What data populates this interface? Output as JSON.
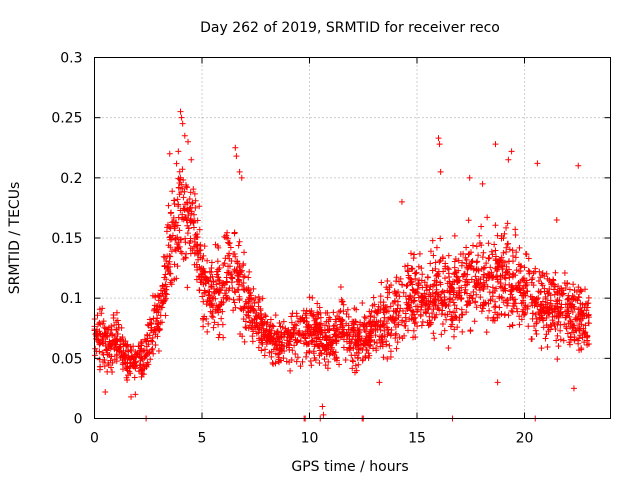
{
  "chart_data": {
    "type": "scatter",
    "title": "Day 262 of 2019, SRMTID for receiver reco",
    "xlabel": "GPS time / hours",
    "ylabel": "SRMTID / TECUs",
    "xlim": [
      0,
      24
    ],
    "ylim": [
      0,
      0.3
    ],
    "grid": true,
    "legend": "none",
    "marker": "+",
    "color": "#ff0000",
    "x_ticks": [
      0,
      5,
      10,
      15,
      20
    ],
    "x_tick_labels": [
      "0",
      "5",
      "10",
      "15",
      "20"
    ],
    "y_ticks": [
      0,
      0.05,
      0.1,
      0.15,
      0.2,
      0.25,
      0.3
    ],
    "y_tick_labels": [
      "0",
      "0.05",
      "0.1",
      "0.15",
      "0.2",
      "0.25",
      "0.3"
    ],
    "trend_profile": {
      "hours": [
        0,
        0.5,
        1,
        1.5,
        2,
        2.5,
        3,
        3.5,
        4,
        4.5,
        5,
        5.5,
        6,
        6.5,
        7,
        7.5,
        8,
        8.5,
        9,
        9.5,
        10,
        10.5,
        11,
        11.5,
        12,
        12.5,
        13,
        13.5,
        14,
        14.5,
        15,
        15.5,
        16,
        16.5,
        17,
        17.5,
        18,
        18.5,
        19,
        19.5,
        20,
        20.5,
        21,
        21.5,
        22,
        22.5,
        23
      ],
      "mean_srmtid": [
        0.075,
        0.06,
        0.065,
        0.05,
        0.045,
        0.06,
        0.09,
        0.14,
        0.17,
        0.16,
        0.12,
        0.1,
        0.11,
        0.13,
        0.1,
        0.085,
        0.07,
        0.06,
        0.065,
        0.07,
        0.075,
        0.07,
        0.065,
        0.075,
        0.07,
        0.065,
        0.075,
        0.085,
        0.09,
        0.1,
        0.1,
        0.095,
        0.11,
        0.1,
        0.11,
        0.115,
        0.12,
        0.11,
        0.12,
        0.115,
        0.11,
        0.1,
        0.09,
        0.095,
        0.09,
        0.085,
        0.08
      ],
      "spread": [
        0.025,
        0.02,
        0.02,
        0.018,
        0.015,
        0.02,
        0.025,
        0.035,
        0.045,
        0.04,
        0.035,
        0.03,
        0.035,
        0.04,
        0.03,
        0.025,
        0.02,
        0.018,
        0.02,
        0.022,
        0.025,
        0.025,
        0.022,
        0.025,
        0.025,
        0.022,
        0.025,
        0.028,
        0.03,
        0.032,
        0.032,
        0.03,
        0.035,
        0.032,
        0.035,
        0.035,
        0.038,
        0.035,
        0.038,
        0.035,
        0.032,
        0.03,
        0.028,
        0.03,
        0.03,
        0.028,
        0.025
      ]
    },
    "points_per_hour": 110,
    "outliers": [
      {
        "x": 4.0,
        "y": 0.255
      },
      {
        "x": 4.05,
        "y": 0.25
      },
      {
        "x": 4.1,
        "y": 0.245
      },
      {
        "x": 4.2,
        "y": 0.235
      },
      {
        "x": 4.35,
        "y": 0.23
      },
      {
        "x": 4.5,
        "y": 0.215
      },
      {
        "x": 3.5,
        "y": 0.22
      },
      {
        "x": 3.9,
        "y": 0.222
      },
      {
        "x": 6.55,
        "y": 0.225
      },
      {
        "x": 6.6,
        "y": 0.218
      },
      {
        "x": 6.75,
        "y": 0.205
      },
      {
        "x": 6.85,
        "y": 0.2
      },
      {
        "x": 16.0,
        "y": 0.233
      },
      {
        "x": 16.05,
        "y": 0.228
      },
      {
        "x": 16.1,
        "y": 0.205
      },
      {
        "x": 18.65,
        "y": 0.228
      },
      {
        "x": 19.25,
        "y": 0.215
      },
      {
        "x": 19.4,
        "y": 0.222
      },
      {
        "x": 20.6,
        "y": 0.212
      },
      {
        "x": 22.5,
        "y": 0.21
      },
      {
        "x": 14.3,
        "y": 0.18
      },
      {
        "x": 18.05,
        "y": 0.195
      },
      {
        "x": 17.45,
        "y": 0.2
      },
      {
        "x": 21.5,
        "y": 0.165
      },
      {
        "x": 2.4,
        "y": 0.0
      },
      {
        "x": 9.75,
        "y": 0.0
      },
      {
        "x": 9.8,
        "y": 0.0
      },
      {
        "x": 10.5,
        "y": 0.0
      },
      {
        "x": 12.45,
        "y": 0.0
      },
      {
        "x": 12.5,
        "y": 0.0
      },
      {
        "x": 16.65,
        "y": 0.0
      },
      {
        "x": 20.5,
        "y": 0.0
      },
      {
        "x": 10.65,
        "y": 0.003
      },
      {
        "x": 10.6,
        "y": 0.01
      },
      {
        "x": 1.7,
        "y": 0.018
      },
      {
        "x": 1.9,
        "y": 0.02
      },
      {
        "x": 0.5,
        "y": 0.022
      },
      {
        "x": 13.25,
        "y": 0.03
      },
      {
        "x": 18.75,
        "y": 0.03
      },
      {
        "x": 22.3,
        "y": 0.025
      }
    ]
  }
}
